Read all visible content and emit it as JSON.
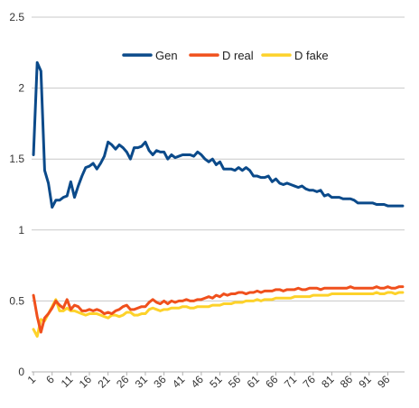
{
  "chart_data": {
    "type": "line",
    "title": "",
    "xlabel": "",
    "ylabel": "",
    "ylim": [
      0,
      2.5
    ],
    "xlim": [
      1,
      100
    ],
    "yticks": [
      "0",
      "0.5",
      "1",
      "1.5",
      "2",
      "2.5"
    ],
    "xticks": [
      "1",
      "6",
      "11",
      "16",
      "21",
      "26",
      "31",
      "36",
      "41",
      "46",
      "51",
      "56",
      "61",
      "66",
      "71",
      "76",
      "81",
      "86",
      "91",
      "96"
    ],
    "grid": "horizontal",
    "legend": "top-center",
    "x": [
      1,
      2,
      3,
      4,
      5,
      6,
      7,
      8,
      9,
      10,
      11,
      12,
      13,
      14,
      15,
      16,
      17,
      18,
      19,
      20,
      21,
      22,
      23,
      24,
      25,
      26,
      27,
      28,
      29,
      30,
      31,
      32,
      33,
      34,
      35,
      36,
      37,
      38,
      39,
      40,
      41,
      42,
      43,
      44,
      45,
      46,
      47,
      48,
      49,
      50,
      51,
      52,
      53,
      54,
      55,
      56,
      57,
      58,
      59,
      60,
      61,
      62,
      63,
      64,
      65,
      66,
      67,
      68,
      69,
      70,
      71,
      72,
      73,
      74,
      75,
      76,
      77,
      78,
      79,
      80,
      81,
      82,
      83,
      84,
      85,
      86,
      87,
      88,
      89,
      90,
      91,
      92,
      93,
      94,
      95,
      96,
      97,
      98,
      99,
      100
    ],
    "series": [
      {
        "name": "Gen",
        "color": "#0b4a8a",
        "values": [
          1.53,
          2.18,
          2.12,
          1.42,
          1.33,
          1.16,
          1.21,
          1.21,
          1.23,
          1.24,
          1.34,
          1.23,
          1.31,
          1.38,
          1.44,
          1.45,
          1.47,
          1.43,
          1.47,
          1.52,
          1.62,
          1.6,
          1.57,
          1.6,
          1.58,
          1.55,
          1.5,
          1.58,
          1.58,
          1.59,
          1.62,
          1.56,
          1.53,
          1.56,
          1.55,
          1.55,
          1.5,
          1.53,
          1.51,
          1.52,
          1.53,
          1.53,
          1.53,
          1.52,
          1.55,
          1.53,
          1.5,
          1.48,
          1.5,
          1.46,
          1.48,
          1.43,
          1.43,
          1.43,
          1.42,
          1.44,
          1.42,
          1.44,
          1.42,
          1.38,
          1.38,
          1.37,
          1.37,
          1.38,
          1.34,
          1.36,
          1.33,
          1.32,
          1.33,
          1.32,
          1.31,
          1.3,
          1.31,
          1.29,
          1.28,
          1.28,
          1.27,
          1.28,
          1.24,
          1.25,
          1.23,
          1.23,
          1.23,
          1.22,
          1.22,
          1.22,
          1.21,
          1.19,
          1.19,
          1.19,
          1.19,
          1.19,
          1.18,
          1.18,
          1.18,
          1.17,
          1.17,
          1.17,
          1.17,
          1.17
        ]
      },
      {
        "name": "D real",
        "color": "#f0501c",
        "values": [
          0.54,
          0.39,
          0.28,
          0.38,
          0.41,
          0.45,
          0.5,
          0.47,
          0.45,
          0.51,
          0.44,
          0.47,
          0.46,
          0.43,
          0.43,
          0.44,
          0.43,
          0.44,
          0.43,
          0.41,
          0.42,
          0.41,
          0.43,
          0.44,
          0.46,
          0.47,
          0.44,
          0.44,
          0.45,
          0.46,
          0.46,
          0.49,
          0.51,
          0.49,
          0.48,
          0.5,
          0.48,
          0.5,
          0.49,
          0.5,
          0.5,
          0.51,
          0.5,
          0.5,
          0.51,
          0.51,
          0.52,
          0.53,
          0.52,
          0.54,
          0.53,
          0.55,
          0.54,
          0.55,
          0.55,
          0.56,
          0.56,
          0.55,
          0.56,
          0.56,
          0.57,
          0.56,
          0.57,
          0.57,
          0.57,
          0.58,
          0.58,
          0.57,
          0.58,
          0.58,
          0.58,
          0.59,
          0.58,
          0.58,
          0.59,
          0.59,
          0.59,
          0.58,
          0.59,
          0.59,
          0.59,
          0.59,
          0.59,
          0.59,
          0.59,
          0.6,
          0.59,
          0.59,
          0.59,
          0.59,
          0.59,
          0.59,
          0.6,
          0.59,
          0.59,
          0.6,
          0.59,
          0.59,
          0.6,
          0.6
        ]
      },
      {
        "name": "D fake",
        "color": "#fdd22a",
        "values": [
          0.3,
          0.25,
          0.37,
          0.36,
          0.41,
          0.46,
          0.51,
          0.43,
          0.43,
          0.45,
          0.43,
          0.43,
          0.42,
          0.41,
          0.4,
          0.41,
          0.41,
          0.41,
          0.4,
          0.39,
          0.38,
          0.4,
          0.4,
          0.39,
          0.4,
          0.42,
          0.42,
          0.4,
          0.4,
          0.41,
          0.41,
          0.44,
          0.45,
          0.44,
          0.43,
          0.44,
          0.44,
          0.45,
          0.45,
          0.45,
          0.46,
          0.46,
          0.45,
          0.45,
          0.46,
          0.46,
          0.46,
          0.46,
          0.47,
          0.47,
          0.47,
          0.48,
          0.48,
          0.48,
          0.49,
          0.49,
          0.49,
          0.5,
          0.5,
          0.5,
          0.51,
          0.5,
          0.51,
          0.51,
          0.51,
          0.52,
          0.52,
          0.52,
          0.52,
          0.52,
          0.53,
          0.53,
          0.53,
          0.53,
          0.53,
          0.54,
          0.54,
          0.54,
          0.54,
          0.54,
          0.55,
          0.55,
          0.55,
          0.55,
          0.55,
          0.55,
          0.55,
          0.55,
          0.55,
          0.55,
          0.55,
          0.55,
          0.56,
          0.55,
          0.55,
          0.56,
          0.56,
          0.55,
          0.56,
          0.56
        ]
      }
    ]
  }
}
